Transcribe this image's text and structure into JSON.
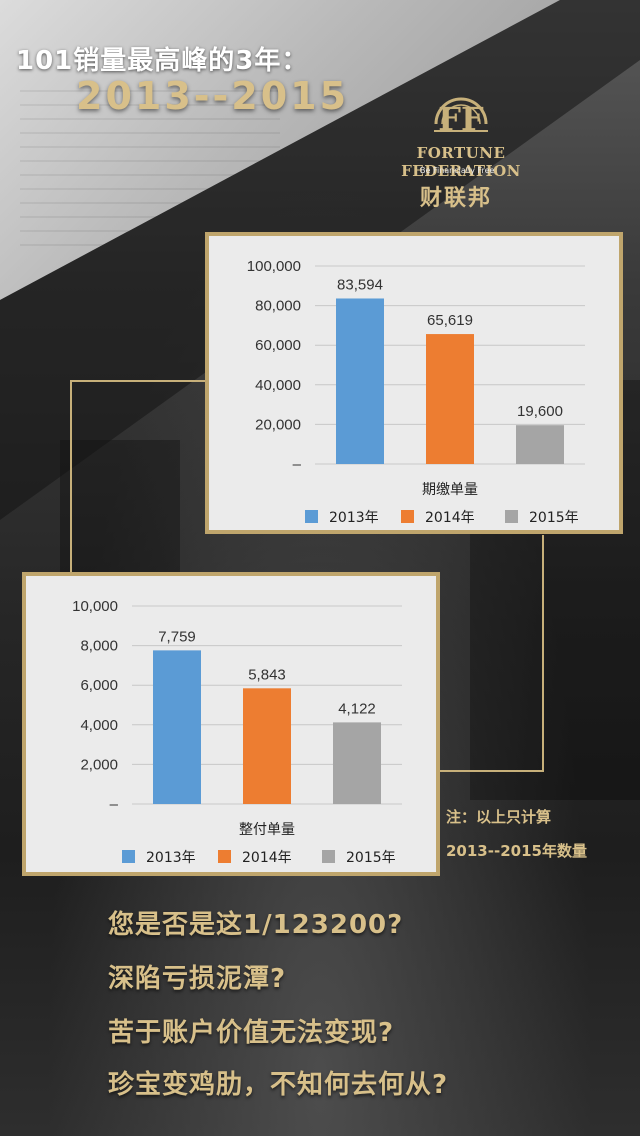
{
  "header": {
    "headline": "101销量最高峰的3年：",
    "years": "2013--2015"
  },
  "logo": {
    "mark_icon": "ff-monogram-icon",
    "name_en": "FORTUNE FEDERATION",
    "slogan": "Be Financially Free",
    "name_cn": "财联邦"
  },
  "colors": {
    "gold": "#c7b07a",
    "series_2013": "#5b9bd5",
    "series_2014": "#ed7d31",
    "series_2015": "#a5a5a5"
  },
  "chart_data": [
    {
      "type": "bar",
      "xlabel": "期缴单量",
      "categories": [
        "2013年",
        "2014年",
        "2015年"
      ],
      "values": [
        83594,
        65619,
        19600
      ],
      "data_labels": [
        "83,594",
        "65,619",
        "19,600"
      ],
      "yticks": [
        "–",
        "20,000",
        "40,000",
        "60,000",
        "80,000",
        "100,000"
      ],
      "ylim": [
        0,
        100000
      ],
      "grid": true,
      "legend": "bottom"
    },
    {
      "type": "bar",
      "xlabel": "整付单量",
      "categories": [
        "2013年",
        "2014年",
        "2015年"
      ],
      "values": [
        7759,
        5843,
        4122
      ],
      "data_labels": [
        "7,759",
        "5,843",
        "4,122"
      ],
      "yticks": [
        "–",
        "2,000",
        "4,000",
        "6,000",
        "8,000",
        "10,000"
      ],
      "ylim": [
        0,
        10000
      ],
      "grid": true,
      "legend": "bottom"
    }
  ],
  "note": {
    "line1": "注：以上只计算",
    "line2": "2013--2015年数量"
  },
  "questions": [
    "您是否是这1/123200?",
    "深陷亏损泥潭?",
    "苦于账户价值无法变现?",
    "珍宝变鸡肋，不知何去何从?"
  ]
}
